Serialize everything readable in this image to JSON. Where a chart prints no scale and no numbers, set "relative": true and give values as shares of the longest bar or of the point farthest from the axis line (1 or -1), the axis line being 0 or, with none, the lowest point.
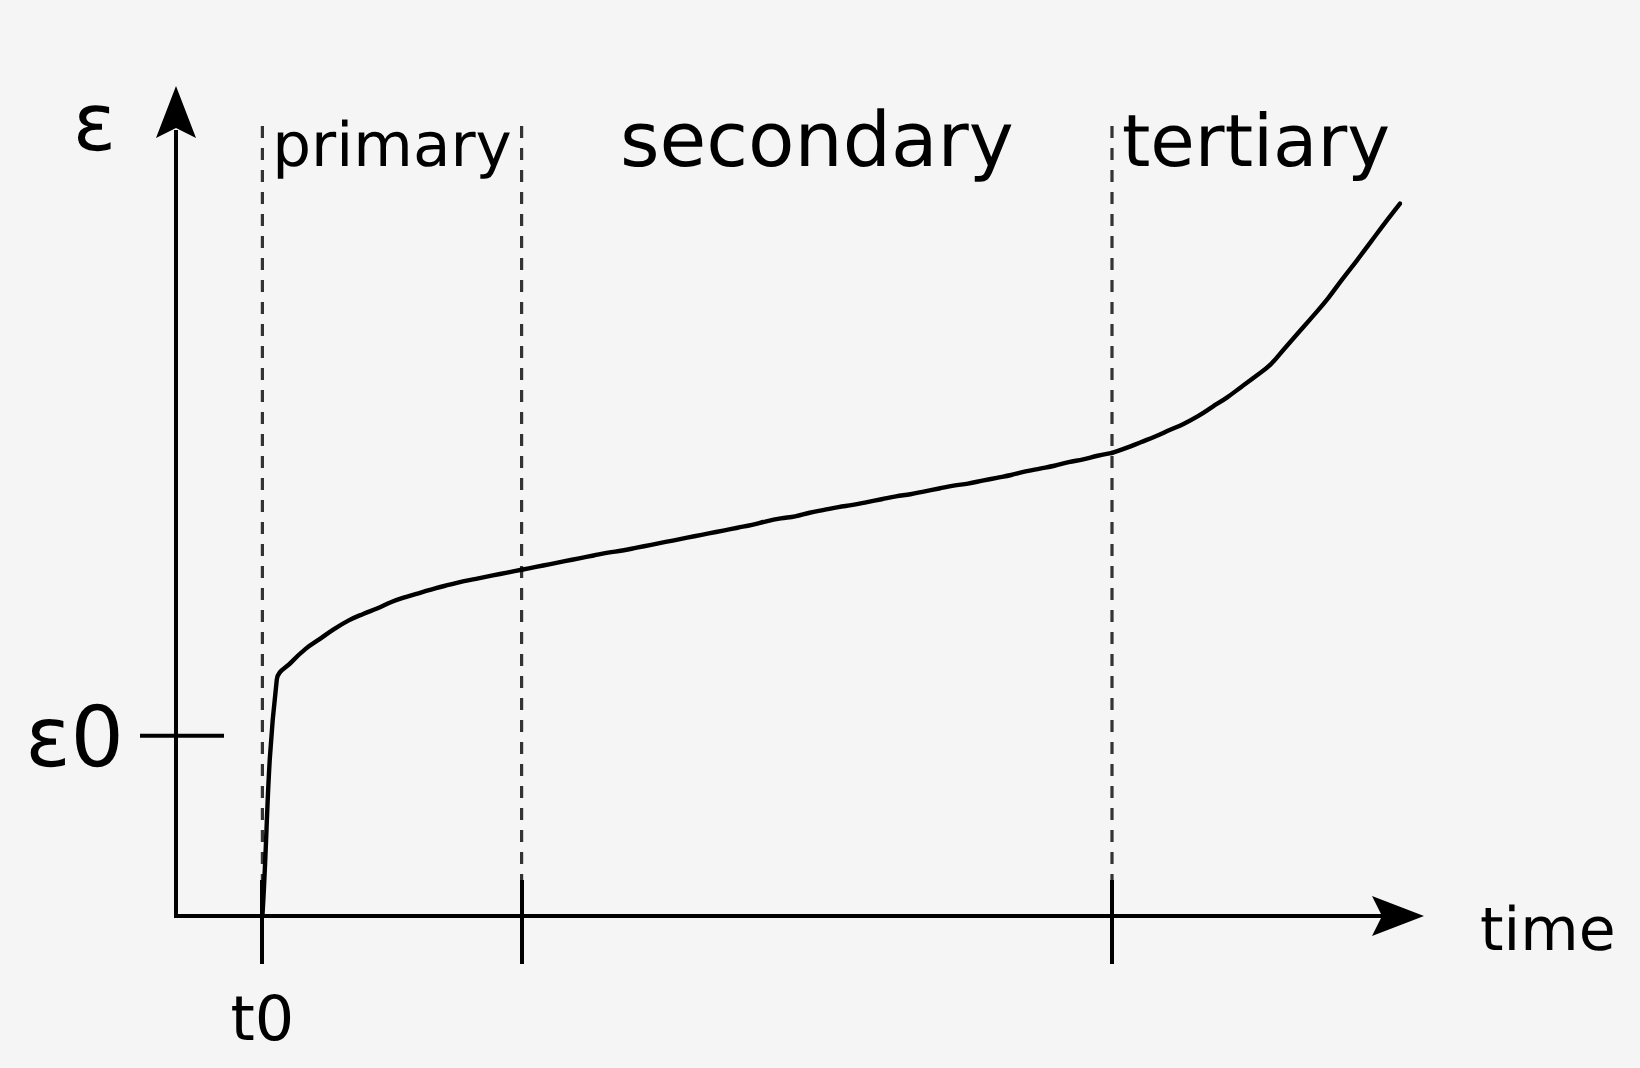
{
  "chart_data": {
    "type": "line",
    "relative": true,
    "xlabel": "time",
    "ylabel": "ε",
    "categories": [
      null,
      null,
      null,
      null,
      null,
      null,
      null,
      null,
      null,
      null,
      null,
      null,
      null,
      null,
      null,
      null,
      null,
      null,
      null,
      null,
      null,
      null,
      null,
      null,
      null,
      null,
      null,
      null,
      null,
      null,
      null,
      null,
      null,
      null,
      null,
      null,
      null,
      null,
      null,
      null,
      null,
      null,
      null,
      null,
      null,
      null,
      null,
      null,
      null,
      null,
      null,
      null,
      null,
      null,
      null,
      null,
      null,
      null,
      null,
      null,
      null,
      null,
      null,
      null,
      null,
      null,
      null,
      null,
      null,
      null,
      null,
      null,
      null,
      null,
      null,
      null,
      null,
      null,
      null,
      null,
      null,
      null,
      null,
      null,
      null,
      null
    ],
    "series": [
      {
        "color": "#000000",
        "values": [
          null,
          null,
          null,
          null,
          null,
          null,
          0,
          0.332,
          0.356,
          0.375,
          0.389,
          0.403,
          0.415,
          0.424,
          0.432,
          0.441,
          0.448,
          0.454,
          0.46,
          0.465,
          0.47,
          0.474,
          0.478,
          0.482,
          0.486,
          null,
          null,
          null,
          null,
          null,
          null,
          null,
          null,
          null,
          null,
          null,
          null,
          null,
          null,
          null,
          null,
          null,
          null,
          null,
          null,
          null,
          null,
          null,
          null,
          null,
          null,
          null,
          null,
          null,
          null,
          null,
          null,
          null,
          null,
          null,
          null,
          null,
          null,
          null,
          null,
          null,
          null,
          null,
          null,
          null,
          null,
          null,
          null,
          null,
          null,
          null,
          null,
          null,
          null,
          null,
          null,
          null,
          null,
          null,
          null,
          null
        ]
      },
      {
        "color": "#000000",
        "values": [
          null,
          null,
          null,
          null,
          null,
          null,
          null,
          null,
          null,
          null,
          null,
          null,
          null,
          null,
          null,
          null,
          null,
          null,
          null,
          null,
          null,
          null,
          null,
          null,
          0.486,
          0.49,
          0.494,
          0.498,
          0.502,
          0.506,
          0.51,
          0.513,
          0.517,
          0.521,
          0.525,
          0.529,
          0.533,
          0.537,
          0.541,
          0.545,
          0.549,
          0.554,
          0.558,
          0.561,
          0.566,
          0.57,
          0.574,
          0.577,
          0.581,
          0.585,
          0.589,
          0.592,
          0.596,
          0.6,
          0.604,
          0.607,
          0.611,
          0.615,
          0.619,
          0.624,
          0.628,
          0.632,
          0.637,
          0.641,
          0.646,
          0.65,
          null,
          null,
          null,
          null,
          null,
          null,
          null,
          null,
          null,
          null,
          null,
          null,
          null,
          null,
          null,
          null,
          null,
          null,
          null,
          null
        ]
      },
      {
        "color": "#000000",
        "values": [
          null,
          null,
          null,
          null,
          null,
          null,
          null,
          null,
          null,
          null,
          null,
          null,
          null,
          null,
          null,
          null,
          null,
          null,
          null,
          null,
          null,
          null,
          null,
          null,
          null,
          null,
          null,
          null,
          null,
          null,
          null,
          null,
          null,
          null,
          null,
          null,
          null,
          null,
          null,
          null,
          null,
          null,
          null,
          null,
          null,
          null,
          null,
          null,
          null,
          null,
          null,
          null,
          null,
          null,
          null,
          null,
          null,
          null,
          null,
          null,
          null,
          null,
          null,
          null,
          null,
          0.65,
          0.657,
          0.665,
          0.673,
          0.682,
          0.691,
          0.702,
          0.715,
          0.728,
          0.743,
          0.758,
          0.774,
          0.797,
          0.82,
          0.843,
          0.867,
          0.894,
          0.92,
          0.947,
          0.974,
          1
        ]
      }
    ],
    "ref_lines": [
      {
        "axis": "y",
        "value": 0.253,
        "label": "ε0"
      }
    ],
    "annotations": [
      "primary",
      "secondary",
      "tertiary",
      "t0"
    ],
    "grid": "x",
    "marker": "none",
    "line_style": "solid"
  }
}
